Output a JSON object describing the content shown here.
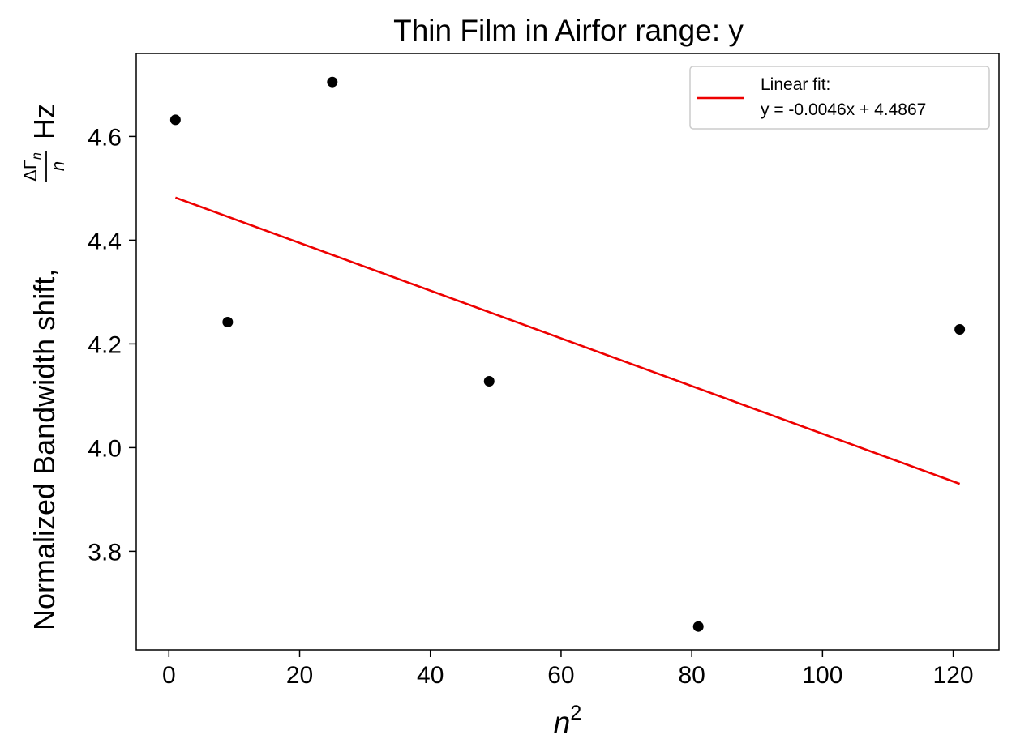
{
  "chart_data": {
    "type": "scatter",
    "title": "Thin Film in Airfor range: y",
    "xlabel": "n",
    "xlabel_superscript": "2",
    "ylabel": "Normalized Bandwidth shift,",
    "ylabel_fraction_numerator": "ΔΓ",
    "ylabel_fraction_subscript": "n",
    "ylabel_fraction_denominator": "n",
    "ylabel_unit": "Hz",
    "xlim": [
      -5,
      127
    ],
    "ylim": [
      3.61,
      4.76
    ],
    "xticks": [
      0,
      20,
      40,
      60,
      80,
      100,
      120
    ],
    "xtick_labels": [
      "0",
      "20",
      "40",
      "60",
      "80",
      "100",
      "120"
    ],
    "yticks": [
      3.8,
      4.0,
      4.2,
      4.4,
      4.6
    ],
    "ytick_labels": [
      "3.8",
      "4.0",
      "4.2",
      "4.4",
      "4.6"
    ],
    "grid": false,
    "legend_position": "top-right",
    "series": [
      {
        "kind": "scatter",
        "color": "#000000",
        "x": [
          1,
          9,
          25,
          49,
          81,
          121
        ],
        "y": [
          4.632,
          4.242,
          4.705,
          4.128,
          3.655,
          4.228
        ]
      },
      {
        "kind": "line",
        "name": "Linear fit:\ny = -0.0046x + 4.4867",
        "legend_line1": "Linear fit:",
        "legend_line2": "y = -0.0046x + 4.4867",
        "color": "#ee0000",
        "slope": -0.0046,
        "intercept": 4.4867,
        "x": [
          1,
          121
        ],
        "y": [
          4.4821,
          3.9301
        ]
      }
    ]
  }
}
